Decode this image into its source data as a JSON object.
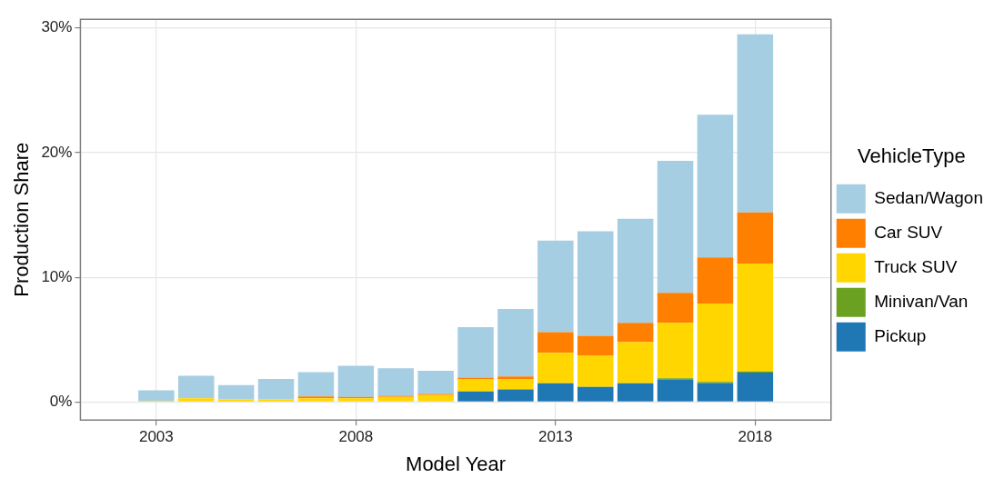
{
  "chart_data": {
    "type": "bar",
    "stacked": true,
    "xlabel": "Model Year",
    "ylabel": "Production Share",
    "legend_title": "VehicleType",
    "legend": "right",
    "grid": true,
    "x": [
      2003,
      2004,
      2005,
      2006,
      2007,
      2008,
      2009,
      2010,
      2011,
      2012,
      2013,
      2014,
      2015,
      2016,
      2017,
      2018
    ],
    "xlim": [
      2001.1,
      2019.9
    ],
    "xticks": [
      2003,
      2008,
      2013,
      2018
    ],
    "ylim": [
      -1.45,
      30.7
    ],
    "yticks": [
      {
        "value": 0,
        "label": "0%"
      },
      {
        "value": 10,
        "label": "10%"
      },
      {
        "value": 20,
        "label": "20%"
      },
      {
        "value": 30,
        "label": "30%"
      }
    ],
    "series": [
      {
        "name": "Pickup",
        "color": "#1f78b4",
        "values": [
          0,
          0,
          0,
          0,
          0,
          0,
          0,
          0,
          0.85,
          1.0,
          1.5,
          1.2,
          1.5,
          1.8,
          1.5,
          2.35
        ]
      },
      {
        "name": "Minivan/Van",
        "color": "#6aa121",
        "values": [
          0,
          0,
          0,
          0,
          0,
          0,
          0,
          0,
          0,
          0,
          0,
          0,
          0,
          0.1,
          0.1,
          0.1
        ]
      },
      {
        "name": "Truck SUV",
        "color": "#ffd600",
        "values": [
          0.1,
          0.3,
          0.2,
          0.2,
          0.3,
          0.3,
          0.4,
          0.55,
          0.95,
          0.85,
          2.45,
          2.5,
          3.3,
          4.45,
          6.3,
          8.65
        ]
      },
      {
        "name": "Car SUV",
        "color": "#ff7f00",
        "values": [
          0,
          0,
          0,
          0,
          0.15,
          0.1,
          0.1,
          0.1,
          0.15,
          0.2,
          1.65,
          1.6,
          1.55,
          2.4,
          3.7,
          4.1
        ]
      },
      {
        "name": "Sedan/Wagon",
        "color": "#a6cee3",
        "values": [
          0.83,
          1.8,
          1.15,
          1.65,
          1.95,
          2.5,
          2.2,
          1.85,
          4.05,
          5.4,
          7.35,
          8.4,
          8.35,
          10.6,
          11.45,
          14.3
        ]
      }
    ]
  }
}
